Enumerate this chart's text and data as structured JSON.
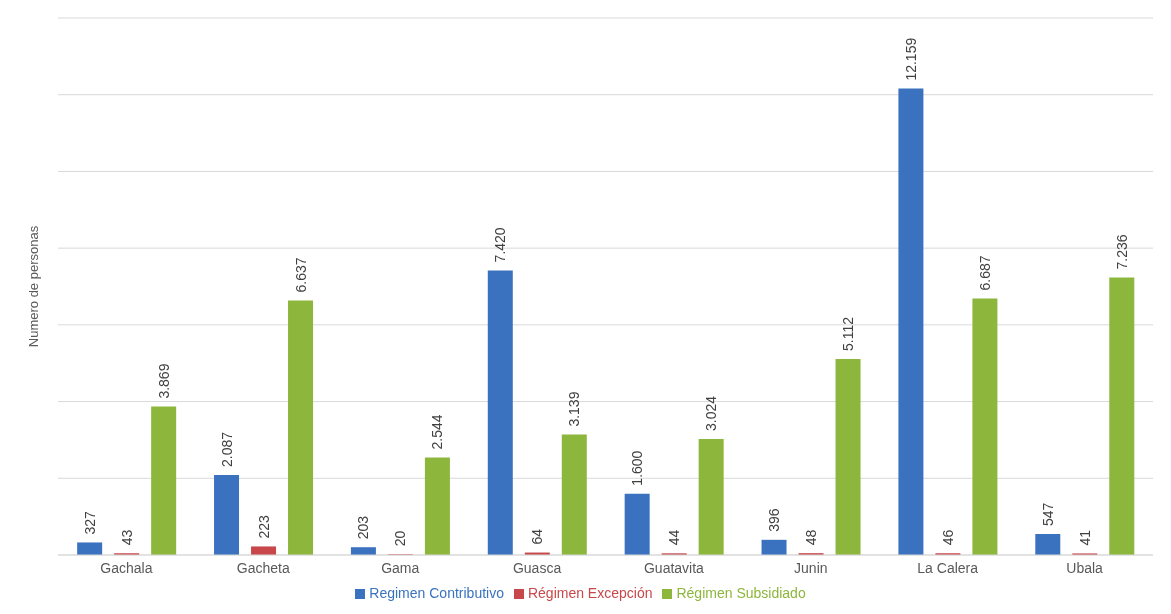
{
  "chart_data": {
    "type": "bar",
    "ylabel": "Numero de personas",
    "categories": [
      "Gachala",
      "Gacheta",
      "Gama",
      "Guasca",
      "Guatavita",
      "Junin",
      "La Calera",
      "Ubala"
    ],
    "series": [
      {
        "name": "Regimen Contributivo",
        "color": "#3a72c0",
        "values": [
          327,
          2087,
          203,
          7420,
          1600,
          396,
          12159,
          547
        ],
        "value_labels": [
          "327",
          "2.087",
          "203",
          "7.420",
          "1.600",
          "396",
          "12.159",
          "547"
        ]
      },
      {
        "name": "Régimen Excepción",
        "color": "#c8474a",
        "values": [
          43,
          223,
          20,
          64,
          44,
          48,
          46,
          41
        ],
        "value_labels": [
          "43",
          "223",
          "20",
          "64",
          "44",
          "48",
          "46",
          "41"
        ]
      },
      {
        "name": "Régimen Subsidiado",
        "color": "#8db63c",
        "values": [
          3869,
          6637,
          2544,
          3139,
          3024,
          5112,
          6687,
          7236
        ],
        "value_labels": [
          "3.869",
          "6.637",
          "2.544",
          "3.139",
          "3.024",
          "5.112",
          "6.687",
          "7.236"
        ]
      }
    ],
    "ylim": [
      0,
      14000
    ],
    "tick_labels": "x",
    "grid": "y",
    "legend": "bottom"
  }
}
